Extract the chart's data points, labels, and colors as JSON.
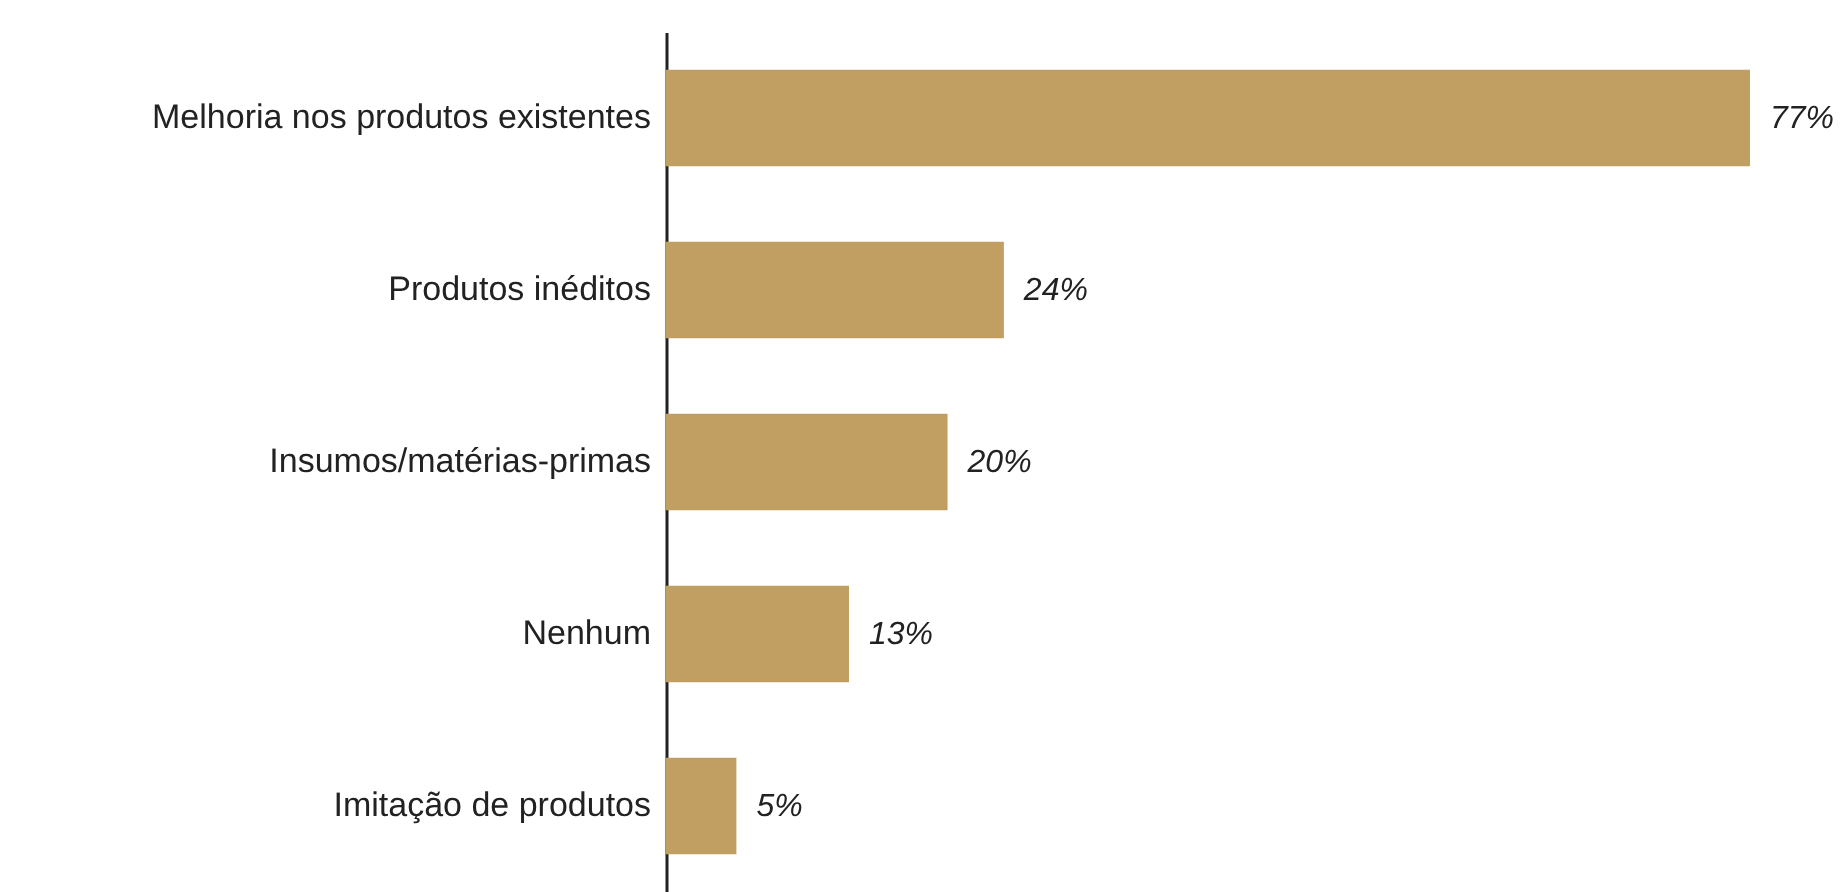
{
  "chart_data": {
    "type": "bar",
    "orientation": "horizontal",
    "categories": [
      "Melhoria nos produtos existentes",
      "Produtos inéditos",
      "Insumos/matérias-primas",
      "Nenhum",
      "Imitação de produtos"
    ],
    "values": [
      77,
      24,
      20,
      13,
      5
    ],
    "value_labels": [
      "77%",
      "24%",
      "20%",
      "13%",
      "5%"
    ],
    "color": "#c19f63"
  }
}
